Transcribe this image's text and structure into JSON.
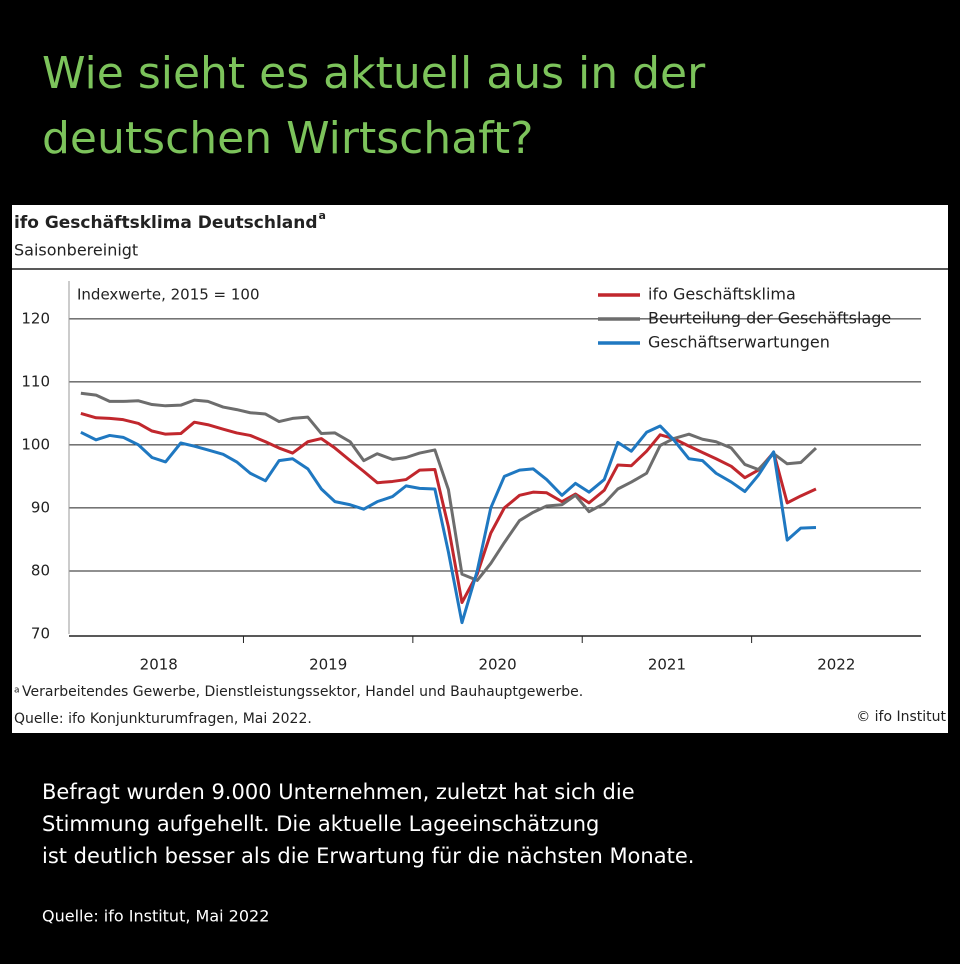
{
  "header": {
    "title_lines": [
      "Wie sieht es aktuell aus in der",
      "deutschen Wirtschaft?"
    ]
  },
  "chart_data": {
    "type": "line",
    "title": "ifo Geschäftsklima Deutschland",
    "title_marker": "a",
    "subtitle": "Saisonbereinigt",
    "annotation": "Indexwerte, 2015 = 100",
    "footnote_marker": "a",
    "footnote": "Verarbeitendes Gewerbe, Dienstleistungssektor, Handel und Bauhauptgewerbe.",
    "source": "Quelle: ifo Konjunkturumfragen, Mai 2022.",
    "copyright": "© ifo Institut",
    "x": [
      2018.04,
      2018.13,
      2018.21,
      2018.29,
      2018.38,
      2018.46,
      2018.54,
      2018.63,
      2018.71,
      2018.79,
      2018.88,
      2018.96,
      2019.04,
      2019.13,
      2019.21,
      2019.29,
      2019.38,
      2019.46,
      2019.54,
      2019.63,
      2019.71,
      2019.79,
      2019.88,
      2019.96,
      2020.04,
      2020.13,
      2020.21,
      2020.29,
      2020.38,
      2020.46,
      2020.54,
      2020.63,
      2020.71,
      2020.79,
      2020.88,
      2020.96,
      2021.04,
      2021.13,
      2021.21,
      2021.29,
      2021.38,
      2021.46,
      2021.54,
      2021.63,
      2021.71,
      2021.79,
      2021.88,
      2021.96,
      2022.04,
      2022.13,
      2022.21,
      2022.29,
      2022.38
    ],
    "series": [
      {
        "name": "ifo Geschäftsklima",
        "color": "#c1272d",
        "values": [
          105,
          104.3,
          104.2,
          104,
          103.4,
          102.2,
          101.7,
          101.8,
          103.6,
          103.2,
          102.5,
          101.9,
          101.5,
          100.5,
          99.5,
          98.7,
          100.5,
          101,
          99.5,
          97.5,
          95.8,
          94,
          94.2,
          94.5,
          96,
          96.1,
          87,
          75,
          79.5,
          86,
          90,
          92,
          92.5,
          92.4,
          91,
          92.2,
          90.8,
          92.8,
          96.8,
          96.7,
          99,
          101.6,
          101,
          99.8,
          98.8,
          97.8,
          96.6,
          94.8,
          96,
          98.8,
          90.8,
          91.9,
          93
        ]
      },
      {
        "name": "Beurteilung der Geschäftslage",
        "color": "#6d6d6d",
        "values": [
          108.2,
          107.9,
          106.9,
          106.9,
          107,
          106.4,
          106.2,
          106.3,
          107.1,
          106.9,
          106,
          105.6,
          105.1,
          104.9,
          103.7,
          104.2,
          104.4,
          101.8,
          101.9,
          100.5,
          97.5,
          98.6,
          97.7,
          98,
          98.7,
          99.2,
          92.9,
          79.5,
          78.5,
          81.2,
          84.5,
          88,
          89.3,
          90.3,
          90.5,
          92,
          89.4,
          90.7,
          93,
          94.1,
          95.5,
          99.9,
          101,
          101.7,
          100.9,
          100.5,
          99.5,
          96.9,
          96.1,
          98.6,
          97,
          97.2,
          99.5
        ]
      },
      {
        "name": "Geschäftserwartungen",
        "color": "#1f78c1",
        "values": [
          102,
          100.8,
          101.5,
          101.2,
          100,
          98,
          97.3,
          100.3,
          99.8,
          99.2,
          98.5,
          97.3,
          95.5,
          94.3,
          97.5,
          97.8,
          96.2,
          93,
          91,
          90.5,
          89.8,
          91,
          91.8,
          93.5,
          93.1,
          93,
          83,
          71.8,
          80,
          90,
          95,
          96,
          96.2,
          94.5,
          92,
          93.9,
          92.5,
          94.5,
          100.4,
          99,
          102,
          103,
          100.8,
          97.8,
          97.5,
          95.5,
          94.1,
          92.6,
          95.2,
          98.9,
          84.9,
          86.8,
          86.9
        ]
      }
    ],
    "xlim": [
      2017.97,
      2023.0
    ],
    "xticks": [
      2019,
      2020,
      2021,
      2022
    ],
    "year_labels": [
      {
        "value": 2018.5,
        "label": "2018"
      },
      {
        "value": 2019.5,
        "label": "2019"
      },
      {
        "value": 2020.5,
        "label": "2020"
      },
      {
        "value": 2021.5,
        "label": "2021"
      },
      {
        "value": 2022.5,
        "label": "2022"
      }
    ],
    "ylim": [
      70,
      126
    ],
    "yticks": [
      70,
      80,
      90,
      100,
      110,
      120
    ],
    "grid": true,
    "legend": "top-right"
  },
  "body": {
    "text_lines": [
      "Befragt wurden 9.000 Unternehmen, zuletzt hat sich die",
      "Stimmung aufgehellt. Die aktuelle Lageeinschätzung",
      "ist deutlich besser als die Erwartung für die nächsten Monate."
    ],
    "source": "Quelle: ifo Institut, Mai 2022"
  }
}
